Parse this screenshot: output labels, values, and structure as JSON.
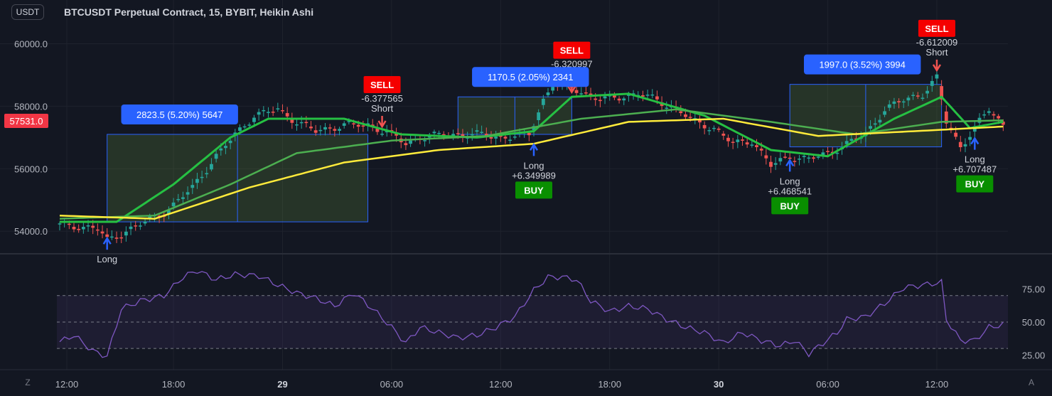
{
  "header": {
    "currency": "USDT",
    "title": "BTCUSDT Perpetual Contract, 15, BYBIT, Heikin Ashi"
  },
  "colors": {
    "background": "#131722",
    "grid": "#1e222d",
    "up": "#26a69a",
    "up_signal": "#1ddb4a",
    "down": "#ef5350",
    "ma_fast": "#26c043",
    "ma_slow": "#4caf50",
    "ma_long": "#ffeb3b",
    "rsi": "#7e57c2",
    "sell": "#f50000",
    "buy": "#098f00",
    "trade_box": "#2962ff",
    "price_badge": "#f23645"
  },
  "price_axis": {
    "ticks": [
      "60000.0",
      "58000.0",
      "56000.0",
      "54000.0"
    ],
    "current_price": "57531.0"
  },
  "rsi_axis": {
    "ticks": [
      "75.00",
      "50.00",
      "25.00"
    ]
  },
  "time_axis": {
    "ticks": [
      "12:00",
      "18:00",
      "29",
      "06:00",
      "12:00",
      "18:00",
      "30",
      "06:00",
      "12:00"
    ],
    "bold": [
      "29",
      "30"
    ]
  },
  "buttons": {
    "timezone": "Z",
    "auto_scale": "A"
  },
  "chart_data": [
    {
      "type": "candlestick",
      "title": "BTCUSDT Perpetual Contract, 15, BYBIT, Heikin Ashi",
      "style": "Heikin Ashi",
      "x_axis_ticks": [
        "12:00",
        "18:00",
        "29",
        "06:00",
        "12:00",
        "18:00",
        "30",
        "06:00",
        "12:00"
      ],
      "y_ticks": [
        60000,
        58000,
        56000,
        54000
      ],
      "ylim": [
        53300,
        61400
      ],
      "current_price": 57531.0,
      "candle_count": 200,
      "key_closes": [
        {
          "i": 0,
          "v": 54200
        },
        {
          "i": 8,
          "v": 54100
        },
        {
          "i": 10,
          "v": 53700
        },
        {
          "i": 14,
          "v": 54000
        },
        {
          "i": 18,
          "v": 54300
        },
        {
          "i": 23,
          "v": 54700
        },
        {
          "i": 28,
          "v": 55400
        },
        {
          "i": 33,
          "v": 56400
        },
        {
          "i": 37,
          "v": 57100
        },
        {
          "i": 41,
          "v": 57700
        },
        {
          "i": 46,
          "v": 57900
        },
        {
          "i": 50,
          "v": 57500
        },
        {
          "i": 54,
          "v": 57200
        },
        {
          "i": 60,
          "v": 57400
        },
        {
          "i": 65,
          "v": 57400
        },
        {
          "i": 70,
          "v": 57100
        },
        {
          "i": 73,
          "v": 56800
        },
        {
          "i": 76,
          "v": 57000
        },
        {
          "i": 82,
          "v": 57100
        },
        {
          "i": 88,
          "v": 57100
        },
        {
          "i": 94,
          "v": 57000
        },
        {
          "i": 99,
          "v": 57100
        },
        {
          "i": 102,
          "v": 58200
        },
        {
          "i": 104,
          "v": 58700
        },
        {
          "i": 108,
          "v": 58600
        },
        {
          "i": 114,
          "v": 58200
        },
        {
          "i": 118,
          "v": 58300
        },
        {
          "i": 122,
          "v": 58400
        },
        {
          "i": 126,
          "v": 58200
        },
        {
          "i": 130,
          "v": 57900
        },
        {
          "i": 134,
          "v": 57500
        },
        {
          "i": 138,
          "v": 57300
        },
        {
          "i": 142,
          "v": 56800
        },
        {
          "i": 146,
          "v": 56900
        },
        {
          "i": 150,
          "v": 56100
        },
        {
          "i": 154,
          "v": 56400
        },
        {
          "i": 158,
          "v": 56300
        },
        {
          "i": 162,
          "v": 56500
        },
        {
          "i": 166,
          "v": 56800
        },
        {
          "i": 170,
          "v": 57100
        },
        {
          "i": 174,
          "v": 57900
        },
        {
          "i": 178,
          "v": 58200
        },
        {
          "i": 182,
          "v": 58400
        },
        {
          "i": 185,
          "v": 58900
        },
        {
          "i": 187,
          "v": 57500
        },
        {
          "i": 190,
          "v": 56700
        },
        {
          "i": 193,
          "v": 57300
        },
        {
          "i": 196,
          "v": 57900
        },
        {
          "i": 199,
          "v": 57400
        }
      ],
      "moving_averages": [
        {
          "name": "fast",
          "color": "#26c043",
          "values": [
            {
              "i": 0,
              "v": 54300
            },
            {
              "i": 12,
              "v": 54300
            },
            {
              "i": 24,
              "v": 55500
            },
            {
              "i": 36,
              "v": 57000
            },
            {
              "i": 44,
              "v": 57600
            },
            {
              "i": 60,
              "v": 57600
            },
            {
              "i": 72,
              "v": 57100
            },
            {
              "i": 88,
              "v": 57000
            },
            {
              "i": 100,
              "v": 57200
            },
            {
              "i": 108,
              "v": 58300
            },
            {
              "i": 120,
              "v": 58400
            },
            {
              "i": 136,
              "v": 57700
            },
            {
              "i": 150,
              "v": 56600
            },
            {
              "i": 162,
              "v": 56400
            },
            {
              "i": 176,
              "v": 57600
            },
            {
              "i": 186,
              "v": 58300
            },
            {
              "i": 192,
              "v": 57300
            },
            {
              "i": 199,
              "v": 57500
            }
          ]
        },
        {
          "name": "slow",
          "color": "#4caf50",
          "values": [
            {
              "i": 0,
              "v": 54400
            },
            {
              "i": 20,
              "v": 54500
            },
            {
              "i": 36,
              "v": 55500
            },
            {
              "i": 50,
              "v": 56500
            },
            {
              "i": 70,
              "v": 56900
            },
            {
              "i": 90,
              "v": 57050
            },
            {
              "i": 110,
              "v": 57600
            },
            {
              "i": 130,
              "v": 57900
            },
            {
              "i": 150,
              "v": 57500
            },
            {
              "i": 168,
              "v": 57100
            },
            {
              "i": 186,
              "v": 57500
            },
            {
              "i": 199,
              "v": 57550
            }
          ]
        },
        {
          "name": "long",
          "color": "#ffeb3b",
          "values": [
            {
              "i": 0,
              "v": 54500
            },
            {
              "i": 20,
              "v": 54400
            },
            {
              "i": 40,
              "v": 55400
            },
            {
              "i": 60,
              "v": 56200
            },
            {
              "i": 80,
              "v": 56600
            },
            {
              "i": 100,
              "v": 56800
            },
            {
              "i": 120,
              "v": 57500
            },
            {
              "i": 140,
              "v": 57600
            },
            {
              "i": 160,
              "v": 57050
            },
            {
              "i": 180,
              "v": 57200
            },
            {
              "i": 199,
              "v": 57350
            }
          ]
        }
      ],
      "annotations": [
        {
          "kind": "long",
          "i": 10,
          "v": 54000,
          "label": "Long"
        },
        {
          "kind": "trade_box",
          "from": 10,
          "to": 65,
          "entry": 54300,
          "target": 57100,
          "label": "2823.5 (5.20%) 5647"
        },
        {
          "kind": "short",
          "i": 68,
          "v": 57100,
          "label": "Short",
          "value": "-6.377565",
          "sell": "SELL"
        },
        {
          "kind": "trade_box",
          "from": 84,
          "to": 108,
          "entry": 57100,
          "target": 58300,
          "label": "1170.5 (2.05%) 2341"
        },
        {
          "kind": "long",
          "i": 100,
          "v": 57000,
          "label": "Long",
          "value": "+6.349989",
          "buy": "BUY"
        },
        {
          "kind": "short",
          "i": 108,
          "v": 58200,
          "label": "Short",
          "value": "-6.320997",
          "sell": "SELL"
        },
        {
          "kind": "trade_box",
          "from": 154,
          "to": 186,
          "entry": 56700,
          "target": 58700,
          "label": "1997.0 (3.52%) 3994"
        },
        {
          "kind": "long",
          "i": 154,
          "v": 56500,
          "label": "Long",
          "value": "+6.468541",
          "buy": "BUY"
        },
        {
          "kind": "short",
          "i": 185,
          "v": 58900,
          "label": "Short",
          "value": "-6.612009",
          "sell": "SELL"
        },
        {
          "kind": "long",
          "i": 193,
          "v": 57200,
          "label": "Long",
          "value": "+6.707487",
          "buy": "BUY"
        }
      ]
    },
    {
      "type": "line",
      "name": "RSI",
      "ylim": [
        15,
        100
      ],
      "levels": [
        70,
        50,
        30
      ],
      "y_ticks": [
        75,
        50,
        25
      ],
      "values": [
        {
          "i": 0,
          "v": 35
        },
        {
          "i": 3,
          "v": 40
        },
        {
          "i": 7,
          "v": 28
        },
        {
          "i": 10,
          "v": 24
        },
        {
          "i": 13,
          "v": 60
        },
        {
          "i": 17,
          "v": 66
        },
        {
          "i": 22,
          "v": 70
        },
        {
          "i": 26,
          "v": 84
        },
        {
          "i": 29,
          "v": 89
        },
        {
          "i": 33,
          "v": 82
        },
        {
          "i": 37,
          "v": 86
        },
        {
          "i": 42,
          "v": 85
        },
        {
          "i": 46,
          "v": 78
        },
        {
          "i": 50,
          "v": 72
        },
        {
          "i": 54,
          "v": 68
        },
        {
          "i": 58,
          "v": 62
        },
        {
          "i": 62,
          "v": 72
        },
        {
          "i": 66,
          "v": 60
        },
        {
          "i": 70,
          "v": 46
        },
        {
          "i": 73,
          "v": 34
        },
        {
          "i": 76,
          "v": 46
        },
        {
          "i": 80,
          "v": 42
        },
        {
          "i": 84,
          "v": 38
        },
        {
          "i": 88,
          "v": 40
        },
        {
          "i": 92,
          "v": 46
        },
        {
          "i": 96,
          "v": 54
        },
        {
          "i": 100,
          "v": 74
        },
        {
          "i": 103,
          "v": 84
        },
        {
          "i": 106,
          "v": 84
        },
        {
          "i": 109,
          "v": 82
        },
        {
          "i": 112,
          "v": 66
        },
        {
          "i": 116,
          "v": 58
        },
        {
          "i": 120,
          "v": 62
        },
        {
          "i": 124,
          "v": 60
        },
        {
          "i": 128,
          "v": 52
        },
        {
          "i": 132,
          "v": 46
        },
        {
          "i": 136,
          "v": 42
        },
        {
          "i": 140,
          "v": 34
        },
        {
          "i": 144,
          "v": 42
        },
        {
          "i": 148,
          "v": 36
        },
        {
          "i": 152,
          "v": 32
        },
        {
          "i": 155,
          "v": 36
        },
        {
          "i": 158,
          "v": 26
        },
        {
          "i": 161,
          "v": 34
        },
        {
          "i": 164,
          "v": 42
        },
        {
          "i": 166,
          "v": 52
        },
        {
          "i": 170,
          "v": 54
        },
        {
          "i": 174,
          "v": 64
        },
        {
          "i": 178,
          "v": 76
        },
        {
          "i": 182,
          "v": 78
        },
        {
          "i": 186,
          "v": 80
        },
        {
          "i": 187,
          "v": 52
        },
        {
          "i": 190,
          "v": 36
        },
        {
          "i": 193,
          "v": 36
        },
        {
          "i": 196,
          "v": 46
        },
        {
          "i": 199,
          "v": 48
        }
      ]
    }
  ]
}
